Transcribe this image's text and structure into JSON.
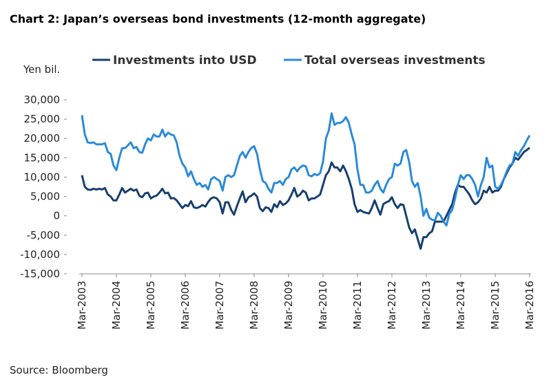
{
  "chart_data": {
    "type": "line",
    "title": "Chart 2: Japan’s overseas bond investments (12-month aggregate)",
    "y_label": "Yen bil.",
    "source": "Source: Bloomberg",
    "categories": [
      "Mar-2003",
      null,
      null,
      null,
      null,
      null,
      null,
      null,
      null,
      null,
      null,
      null,
      "Mar-2004",
      null,
      null,
      null,
      null,
      null,
      null,
      null,
      null,
      null,
      null,
      null,
      "Mar-2005",
      null,
      null,
      null,
      null,
      null,
      null,
      null,
      null,
      null,
      null,
      null,
      "Mar-2006",
      null,
      null,
      null,
      null,
      null,
      null,
      null,
      null,
      null,
      null,
      null,
      "Mar-2007",
      null,
      null,
      null,
      null,
      null,
      null,
      null,
      null,
      null,
      null,
      null,
      "Mar-2008",
      null,
      null,
      null,
      null,
      null,
      null,
      null,
      null,
      null,
      null,
      null,
      "Mar-2009",
      null,
      null,
      null,
      null,
      null,
      null,
      null,
      null,
      null,
      null,
      null,
      "Mar-2010",
      null,
      null,
      null,
      null,
      null,
      null,
      null,
      null,
      null,
      null,
      null,
      "Mar-2011",
      null,
      null,
      null,
      null,
      null,
      null,
      null,
      null,
      null,
      null,
      null,
      "Mar-2012",
      null,
      null,
      null,
      null,
      null,
      null,
      null,
      null,
      null,
      null,
      null,
      "Mar-2013",
      null,
      null,
      null,
      null,
      null,
      null,
      null,
      null,
      null,
      null,
      null,
      "Mar-2014",
      null,
      null,
      null,
      null,
      null,
      null,
      null,
      null,
      null,
      null,
      null,
      "Mar-2015",
      null,
      null,
      null,
      null,
      null,
      null,
      null,
      null,
      null,
      null,
      null,
      "Mar-2016"
    ],
    "series": [
      {
        "name": "Investments into USD",
        "color": "#163f6e",
        "values": [
          10500,
          7500,
          6800,
          6700,
          7000,
          6800,
          7000,
          6800,
          7200,
          5500,
          5000,
          4000,
          4000,
          5500,
          7200,
          6000,
          6500,
          7000,
          6500,
          6800,
          5200,
          4800,
          5800,
          6000,
          4500,
          5000,
          5200,
          6000,
          7000,
          5800,
          6000,
          4500,
          4600,
          4000,
          3000,
          2000,
          2800,
          2500,
          3800,
          2200,
          2000,
          2300,
          2800,
          2400,
          3600,
          4500,
          4800,
          4500,
          3500,
          600,
          3500,
          3500,
          1500,
          300,
          2500,
          4500,
          6300,
          3500,
          4800,
          5200,
          5800,
          5000,
          2000,
          1200,
          2200,
          2000,
          1000,
          3000,
          2200,
          3800,
          2800,
          3200,
          4000,
          5500,
          7200,
          5000,
          5500,
          6500,
          6000,
          4000,
          4500,
          4500,
          5000,
          5500,
          8000,
          10500,
          11500,
          13800,
          12500,
          12500,
          11500,
          13000,
          11500,
          9500,
          7000,
          3000,
          1000,
          1500,
          1000,
          800,
          600,
          2000,
          4000,
          2000,
          300,
          3000,
          3500,
          3800,
          4800,
          3000,
          2000,
          3000,
          2800,
          0,
          -3000,
          -4500,
          -3500,
          -6000,
          -8500,
          -5500,
          -5500,
          -4500,
          -4000,
          -1500,
          -1500,
          -1500,
          -1500,
          0,
          1500,
          3000,
          6000,
          8000,
          7500,
          7500,
          6500,
          5500,
          4000,
          3000,
          3500,
          4500,
          6500,
          6000,
          7500,
          6000,
          6500,
          6500,
          7500,
          9500,
          11000,
          12500,
          13500,
          15000,
          14500,
          15500,
          16500,
          17000,
          17600
        ]
      },
      {
        "name": "Total overseas investments",
        "color": "#2b8ad9",
        "values": [
          26000,
          21000,
          19000,
          18800,
          19000,
          18500,
          18500,
          18500,
          18800,
          16500,
          16000,
          13000,
          11800,
          15000,
          17500,
          17500,
          18200,
          19000,
          17500,
          17800,
          16500,
          16300,
          18500,
          20000,
          19500,
          21000,
          20500,
          20500,
          22300,
          20500,
          21500,
          21000,
          20800,
          19000,
          15500,
          13500,
          12500,
          10200,
          11500,
          9500,
          8000,
          8500,
          7500,
          8000,
          6800,
          9500,
          10000,
          9500,
          9000,
          6500,
          10000,
          10500,
          10000,
          10500,
          13000,
          15500,
          16500,
          15000,
          16500,
          17500,
          18000,
          16000,
          12000,
          9000,
          8500,
          7000,
          6000,
          8500,
          8500,
          9000,
          8000,
          9500,
          10000,
          12000,
          12500,
          11500,
          12500,
          13000,
          12800,
          10500,
          10200,
          10800,
          10500,
          11000,
          14000,
          20000,
          22000,
          26500,
          23500,
          24000,
          24000,
          24500,
          25500,
          24000,
          21000,
          18500,
          12000,
          8000,
          8000,
          6000,
          6000,
          6500,
          8000,
          9000,
          7000,
          6000,
          8000,
          9500,
          10000,
          13500,
          13000,
          13500,
          16500,
          17000,
          14000,
          9000,
          7500,
          8500,
          5000,
          0,
          1800,
          -500,
          -1000,
          -1200,
          800,
          0,
          -1500,
          -2500,
          500,
          1500,
          4500,
          8000,
          10500,
          9500,
          10500,
          10500,
          9500,
          8000,
          5000,
          8000,
          10000,
          15000,
          12500,
          13000,
          7500,
          7000,
          8000,
          9500,
          11500,
          13000,
          13500,
          16500,
          15500,
          17000,
          18000,
          19500,
          20800
        ]
      }
    ],
    "ylim": [
      -15000,
      30000
    ],
    "yticks": [
      {
        "value": -15000,
        "label": "-15,000"
      },
      {
        "value": -10000,
        "label": "-10,000"
      },
      {
        "value": -5000,
        "label": "-5,000"
      },
      0,
      {
        "value": 5000,
        "label": "5,000"
      },
      {
        "value": 10000,
        "label": "10,000"
      },
      {
        "value": 15000,
        "label": "15,000"
      },
      {
        "value": 20000,
        "label": "20,000"
      },
      {
        "value": 25000,
        "label": "25,000"
      },
      {
        "value": 30000,
        "label": "30,000"
      }
    ],
    "legend": "top"
  }
}
